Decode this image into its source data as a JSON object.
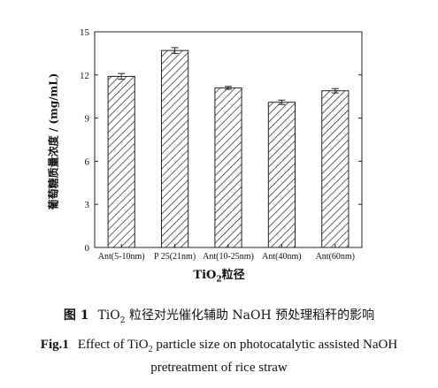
{
  "chart_data": {
    "type": "bar",
    "categories": [
      "Ant(5-10nm)",
      "P 25(21nm)",
      "Ant(10-25nm)",
      "Ant(40nm)",
      "Ant(60nm)"
    ],
    "values": [
      11.9,
      13.7,
      11.1,
      10.1,
      10.9
    ],
    "errors": [
      0.2,
      0.2,
      0.1,
      0.15,
      0.15
    ],
    "yticks": [
      0,
      3,
      6,
      9,
      12,
      15
    ],
    "ylim": [
      0,
      15
    ],
    "ylabel": "葡萄糖质量浓度 / (mg/mL)",
    "xlabel_main": "TiO",
    "xlabel_sub": "2",
    "xlabel_rest": "粒径",
    "bar_fill": "diagonal-hatch",
    "grid": false
  },
  "caption_cn": {
    "label": "图 1",
    "pre": "TiO",
    "sub": "2",
    "post": " 粒径对光催化辅助 NaOH 预处理稻秆的影响"
  },
  "caption_en": {
    "label": "Fig.1",
    "pre": "Effect of TiO",
    "sub": "2",
    "post": " particle size on photocatalytic assisted NaOH",
    "line2": "pretreatment of rice straw"
  }
}
